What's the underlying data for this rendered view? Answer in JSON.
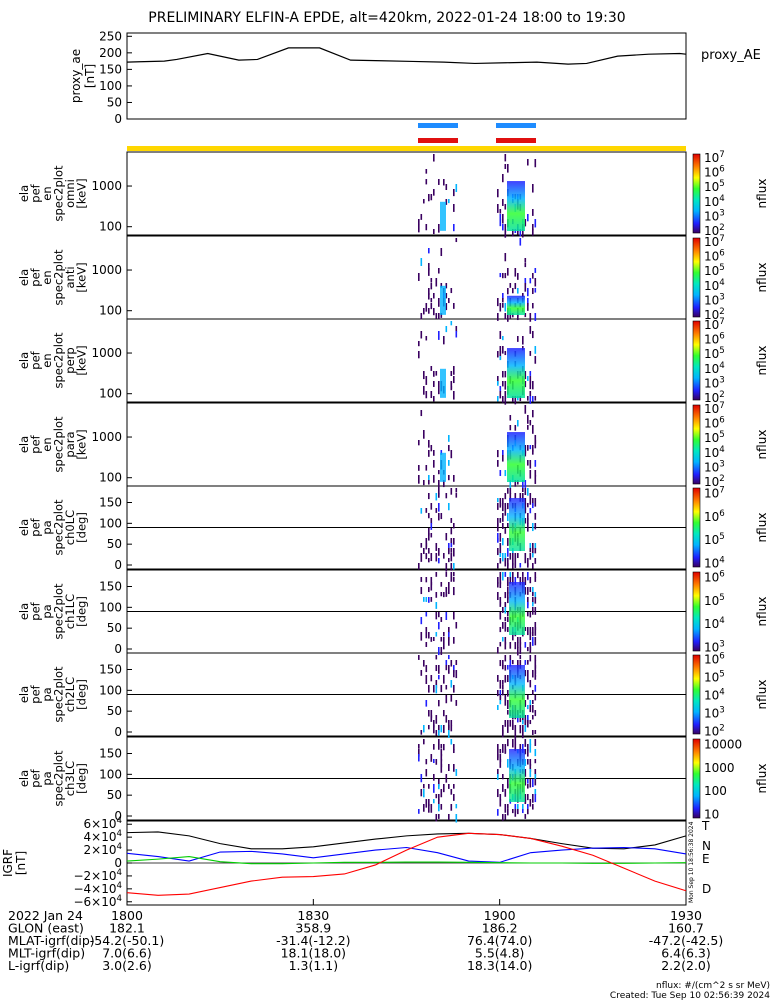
{
  "title": "PRELIMINARY ELFIN-A EPDE, alt=420km, 2022-01-24 18:00 to 19:30",
  "colors": {
    "blue_bar": "#1e8cff",
    "red_bar": "#e01010",
    "yellow_bar": "#ffd700",
    "ae_line": "#000000"
  },
  "chart_data": [
    {
      "type": "line",
      "name": "proxy_ae",
      "ylabel_lines": [
        "proxy_ae",
        "[nT]"
      ],
      "legend": "proxy_AE",
      "ylim": [
        0,
        260
      ],
      "yticks": [
        "0",
        "50",
        "100",
        "150",
        "200",
        "250"
      ],
      "x_minutes": [
        0,
        2,
        6,
        8,
        13,
        18,
        21,
        26,
        31,
        36,
        41,
        46,
        51,
        56,
        61,
        66,
        71,
        74,
        79,
        84,
        89,
        90
      ],
      "values": [
        172,
        173,
        175,
        180,
        198,
        178,
        180,
        215,
        215,
        178,
        176,
        174,
        172,
        168,
        170,
        172,
        166,
        168,
        190,
        196,
        198,
        196
      ]
    },
    {
      "type": "heatmap",
      "name": "omni",
      "ylabel_lines": [
        "ela",
        "pef",
        "en",
        "spec2plot",
        "omni",
        "[keV]"
      ],
      "yticks": [
        "100",
        "1000"
      ],
      "cbar_label": "nflux",
      "cbar_ticks": [
        "10^2",
        "10^3",
        "10^4",
        "10^5",
        "10^6",
        "10^7"
      ]
    },
    {
      "type": "heatmap",
      "name": "anti",
      "ylabel_lines": [
        "ela",
        "pef",
        "en",
        "spec2plot",
        "anti",
        "[keV]"
      ],
      "yticks": [
        "100",
        "1000"
      ],
      "cbar_label": "nflux",
      "cbar_ticks": [
        "10^2",
        "10^3",
        "10^4",
        "10^5",
        "10^6",
        "10^7"
      ]
    },
    {
      "type": "heatmap",
      "name": "perp",
      "ylabel_lines": [
        "ela",
        "pef",
        "en",
        "spec2plot",
        "perp",
        "[keV]"
      ],
      "yticks": [
        "100",
        "1000"
      ],
      "cbar_label": "nflux",
      "cbar_ticks": [
        "10^2",
        "10^3",
        "10^4",
        "10^5",
        "10^6",
        "10^7"
      ]
    },
    {
      "type": "heatmap",
      "name": "para",
      "ylabel_lines": [
        "ela",
        "pef",
        "en",
        "spec2plot",
        "para",
        "[keV]"
      ],
      "yticks": [
        "100",
        "1000"
      ],
      "cbar_label": "nflux",
      "cbar_ticks": [
        "10^2",
        "10^3",
        "10^4",
        "10^5",
        "10^6",
        "10^7"
      ]
    },
    {
      "type": "heatmap",
      "name": "ch0LC",
      "ylabel_lines": [
        "ela",
        "pef",
        "pa",
        "spec2plot",
        "ch0LC",
        "[deg]"
      ],
      "yticks": [
        "0",
        "50",
        "100",
        "150"
      ],
      "cbar_label": "nflux",
      "cbar_ticks": [
        "10^4",
        "10^5",
        "10^6",
        "10^7"
      ]
    },
    {
      "type": "heatmap",
      "name": "ch1LC",
      "ylabel_lines": [
        "ela",
        "pef",
        "pa",
        "spec2plot",
        "ch1LC",
        "[deg]"
      ],
      "yticks": [
        "0",
        "50",
        "100",
        "150"
      ],
      "cbar_label": "nflux",
      "cbar_ticks": [
        "10^3",
        "10^4",
        "10^5",
        "10^6"
      ]
    },
    {
      "type": "heatmap",
      "name": "ch2LC",
      "ylabel_lines": [
        "ela",
        "pef",
        "pa",
        "spec2plot",
        "ch2LC",
        "[deg]"
      ],
      "yticks": [
        "0",
        "50",
        "100",
        "150"
      ],
      "cbar_label": "nflux",
      "cbar_ticks": [
        "10^2",
        "10^3",
        "10^4",
        "10^5",
        "10^6"
      ]
    },
    {
      "type": "heatmap",
      "name": "ch3LC",
      "ylabel_lines": [
        "ela",
        "pef",
        "pa",
        "spec2plot",
        "ch3LC",
        "[deg]"
      ],
      "yticks": [
        "0",
        "50",
        "100",
        "150"
      ],
      "cbar_label": "nflux",
      "cbar_ticks": [
        "10",
        "100",
        "1000",
        "10000"
      ]
    },
    {
      "type": "line",
      "name": "IGRF",
      "ylabel_lines": [
        "IGRF",
        "[nT]"
      ],
      "ylim": [
        -65000,
        65000
      ],
      "yticks": [
        "−6×10^4",
        "−4×10^4",
        "−2×10^4",
        "0",
        "2×10^4",
        "4×10^4",
        "6×10^4"
      ],
      "series_labels": [
        "T",
        "N",
        "E",
        "D"
      ],
      "series_colors": [
        "#000000",
        "#0000ff",
        "#00cc00",
        "#ff0000"
      ],
      "x_minutes": [
        0,
        5,
        10,
        15,
        20,
        25,
        30,
        35,
        40,
        45,
        50,
        55,
        60,
        65,
        70,
        75,
        80,
        85,
        90
      ],
      "series": [
        {
          "name": "T",
          "values": [
            47000,
            48000,
            42000,
            30000,
            22000,
            22000,
            25000,
            31000,
            37000,
            42000,
            45000,
            46000,
            44000,
            38000,
            30000,
            23000,
            22000,
            28000,
            42000
          ]
        },
        {
          "name": "N",
          "values": [
            15000,
            10000,
            3000,
            17000,
            18000,
            14000,
            8000,
            14000,
            20000,
            24000,
            16000,
            3000,
            1000,
            16000,
            20000,
            23000,
            24000,
            22000,
            14000
          ]
        },
        {
          "name": "E",
          "values": [
            3000,
            6000,
            10000,
            2000,
            -1000,
            -1000,
            0,
            1000,
            1000,
            1500,
            1500,
            1000,
            500,
            0,
            0,
            -500,
            -500,
            0,
            500
          ]
        },
        {
          "name": "D",
          "values": [
            -46000,
            -50000,
            -48000,
            -38000,
            -28000,
            -22000,
            -21000,
            -17000,
            -3000,
            20000,
            40000,
            46000,
            44000,
            38000,
            26000,
            12000,
            -8000,
            -28000,
            -43000
          ]
        }
      ]
    }
  ],
  "right_stamp": "Mon Sep 10 18:56:38 2024",
  "footer": {
    "rows": [
      {
        "label": "2022 Jan 24",
        "values": [
          "1800",
          "1830",
          "1900",
          "1930"
        ]
      },
      {
        "label": "GLON (east)",
        "values": [
          "182.1",
          "358.9",
          "186.2",
          "160.7"
        ]
      },
      {
        "label": "MLAT-igrf(dip)",
        "values": [
          "-54.2(-50.1)",
          "-31.4(-12.2)",
          "76.4(74.0)",
          "-47.2(-42.5)"
        ]
      },
      {
        "label": "MLT-igrf(dip)",
        "values": [
          "7.0(6.6)",
          "18.1(18.0)",
          "5.5(4.8)",
          "6.4(6.3)"
        ]
      },
      {
        "label": "L-igrf(dip)",
        "values": [
          "3.0(2.6)",
          "1.3(1.1)",
          "18.3(14.0)",
          "2.2(2.0)"
        ]
      }
    ],
    "nflux_note": "nflux: #/(cm^2 s sr MeV)",
    "created": "Created: Tue Sep 10 02:56:39 2024"
  }
}
